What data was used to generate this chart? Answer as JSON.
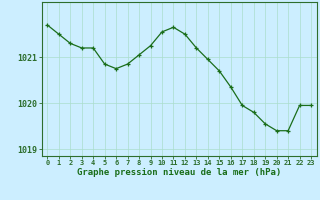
{
  "hours": [
    0,
    1,
    2,
    3,
    4,
    5,
    6,
    7,
    8,
    9,
    10,
    11,
    12,
    13,
    14,
    15,
    16,
    17,
    18,
    19,
    20,
    21,
    22,
    23
  ],
  "pressure": [
    1021.7,
    1021.5,
    1021.3,
    1021.2,
    1021.2,
    1020.85,
    1020.75,
    1020.85,
    1021.05,
    1021.25,
    1021.55,
    1021.65,
    1021.5,
    1021.2,
    1020.95,
    1020.7,
    1020.35,
    1019.95,
    1019.8,
    1019.55,
    1019.4,
    1019.4,
    1019.95,
    1019.95
  ],
  "line_color": "#1a6e1a",
  "marker": "+",
  "bg_color": "#cceeff",
  "grid_color": "#aaddcc",
  "xlabel": "Graphe pression niveau de la mer (hPa)",
  "xlabel_color": "#1a6e1a",
  "ylabel_ticks": [
    1019,
    1020,
    1021
  ],
  "ylim": [
    1018.85,
    1022.2
  ],
  "xlim": [
    -0.5,
    23.5
  ],
  "axis_color": "#2d6e2d",
  "tick_label_color": "#1a6e1a",
  "spine_color": "#2d6e2d"
}
